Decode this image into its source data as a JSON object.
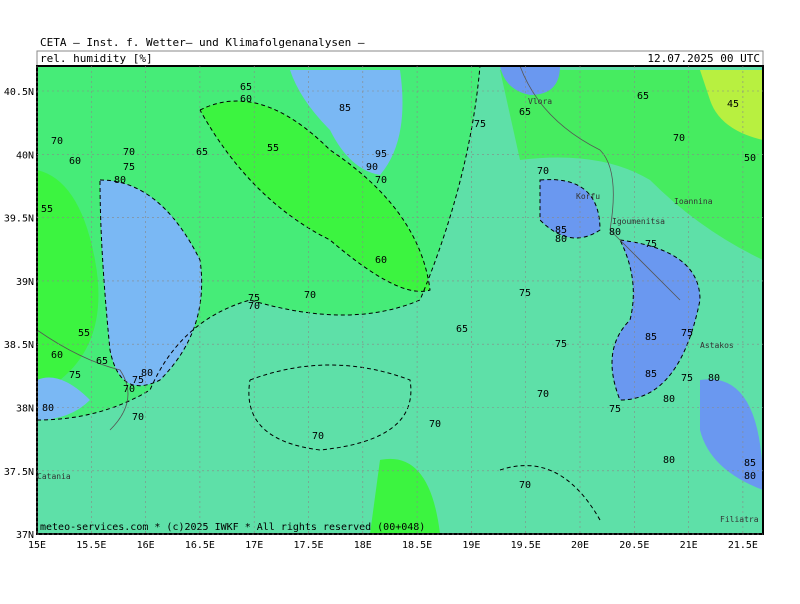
{
  "header": {
    "title": "CETA — Inst. f. Wetter— und Klimafolgenanalysen —",
    "field": "rel. humidity [%]",
    "valid_time": "12.07.2025 00 UTC"
  },
  "footer": "meteo-services.com * (c)2025 IWKF * All rights reserved (00+048)",
  "lon_labels": [
    "15E",
    "15.5E",
    "16E",
    "16.5E",
    "17E",
    "17.5E",
    "18E",
    "18.5E",
    "19E",
    "19.5E",
    "20E",
    "20.5E",
    "21E",
    "21.5E"
  ],
  "lat_labels": [
    "40.5N",
    "40N",
    "39.5N",
    "39N",
    "38.5N",
    "38N",
    "37.5N",
    "37N"
  ],
  "places": [
    "Vlora",
    "Korfu",
    "Igoumenitsa",
    "Ioannina",
    "Astakos",
    "Catania",
    "Filiatra"
  ],
  "contour_labels": [
    "65",
    "60",
    "85",
    "95",
    "90",
    "70",
    "55",
    "65",
    "70",
    "60",
    "70",
    "75",
    "80",
    "55",
    "60",
    "75",
    "65",
    "65",
    "45",
    "70",
    "50",
    "70",
    "85",
    "80",
    "80",
    "75",
    "75",
    "70",
    "75",
    "70",
    "55",
    "60",
    "65",
    "75",
    "80",
    "75",
    "70",
    "80",
    "70",
    "65",
    "75",
    "85",
    "75",
    "85",
    "75",
    "80",
    "80",
    "75",
    "70",
    "70",
    "70",
    "80",
    "85",
    "80",
    "70"
  ]
}
